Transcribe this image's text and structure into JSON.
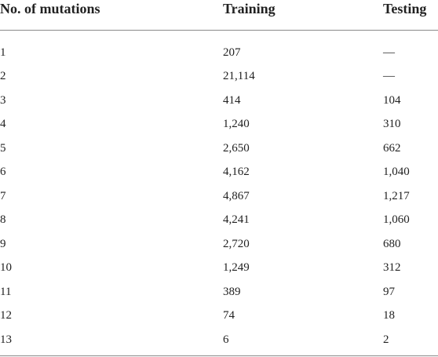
{
  "table": {
    "headers": [
      "No. of mutations",
      "Training",
      "Testing"
    ],
    "rows": [
      [
        "1",
        "207",
        "—"
      ],
      [
        "2",
        "21,114",
        "—"
      ],
      [
        "3",
        "414",
        "104"
      ],
      [
        "4",
        "1,240",
        "310"
      ],
      [
        "5",
        "2,650",
        "662"
      ],
      [
        "6",
        "4,162",
        "1,040"
      ],
      [
        "7",
        "4,867",
        "1,217"
      ],
      [
        "8",
        "4,241",
        "1,060"
      ],
      [
        "9",
        "2,720",
        "680"
      ],
      [
        "10",
        "1,249",
        "312"
      ],
      [
        "11",
        "389",
        "97"
      ],
      [
        "12",
        "74",
        "18"
      ],
      [
        "13",
        "6",
        "2"
      ]
    ]
  }
}
